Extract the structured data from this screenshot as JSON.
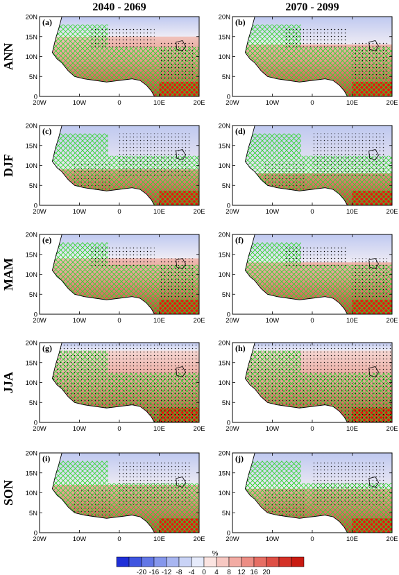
{
  "column_titles": [
    "2040 - 2069",
    "2070 - 2099"
  ],
  "row_labels": [
    "ANN",
    "DJF",
    "MAM",
    "JJA",
    "SON"
  ],
  "panel_letters": [
    "(a)",
    "(b)",
    "(c)",
    "(d)",
    "(e)",
    "(f)",
    "(g)",
    "(h)",
    "(i)",
    "(j)"
  ],
  "lat_ticks": [
    "0",
    "5N",
    "10N",
    "15N",
    "20N"
  ],
  "lon_ticks": [
    "20W",
    "10W",
    "0",
    "10E",
    "20E"
  ],
  "colorbar": {
    "unit_label": "%",
    "tick_labels": [
      "-20",
      "-16",
      "-12",
      "-8",
      "-4",
      "0",
      "4",
      "8",
      "12",
      "16",
      "20"
    ],
    "colors": [
      "#1f2fd8",
      "#3f55e0",
      "#6277e6",
      "#8597ec",
      "#a8b6f1",
      "#c9d3f6",
      "#e6ebfb",
      "#fbe4e1",
      "#f7c8c2",
      "#f2aba3",
      "#ec8d84",
      "#e66e64",
      "#de4f45",
      "#d43127",
      "#c91b12"
    ]
  },
  "icons": {
    "stipple": "stipple-pattern",
    "hatch": "green-crosshatch-pattern"
  }
}
